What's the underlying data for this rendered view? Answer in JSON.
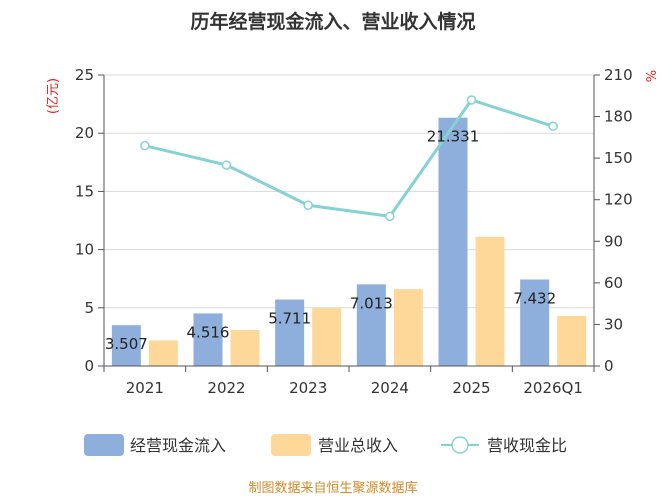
{
  "title": "历年经营现金流入、营业收入情况",
  "source": "制图数据来自恒生聚源数据库",
  "chart_data": {
    "type": "bar",
    "title": "历年经营现金流入、营业收入情况",
    "categories": [
      "2021",
      "2022",
      "2023",
      "2024",
      "2025",
      "2026Q1"
    ],
    "series": [
      {
        "name": "经营现金流入",
        "type": "bar",
        "axis": "left",
        "color": "#8eaedb",
        "values": [
          3.507,
          4.516,
          5.711,
          7.013,
          21.331,
          7.432
        ],
        "labels": [
          "3.507",
          "4.516",
          "5.711",
          "7.013",
          "21.331",
          "7.432"
        ]
      },
      {
        "name": "营业总收入",
        "type": "bar",
        "axis": "left",
        "color": "#fdd898",
        "values": [
          2.2,
          3.1,
          5.0,
          6.6,
          11.1,
          4.3
        ]
      },
      {
        "name": "营收现金比",
        "type": "line",
        "axis": "right",
        "color": "#85d2d4",
        "values": [
          159,
          145,
          116,
          108,
          192,
          173
        ]
      }
    ],
    "left_axis": {
      "unit": "(亿元)",
      "min": 0,
      "max": 25,
      "ticks": [
        0,
        5,
        10,
        15,
        20,
        25
      ]
    },
    "right_axis": {
      "unit": "%",
      "min": 0,
      "max": 210,
      "ticks": [
        0,
        30,
        60,
        90,
        120,
        150,
        180,
        210
      ]
    },
    "grid": true,
    "legend": "bottom"
  }
}
